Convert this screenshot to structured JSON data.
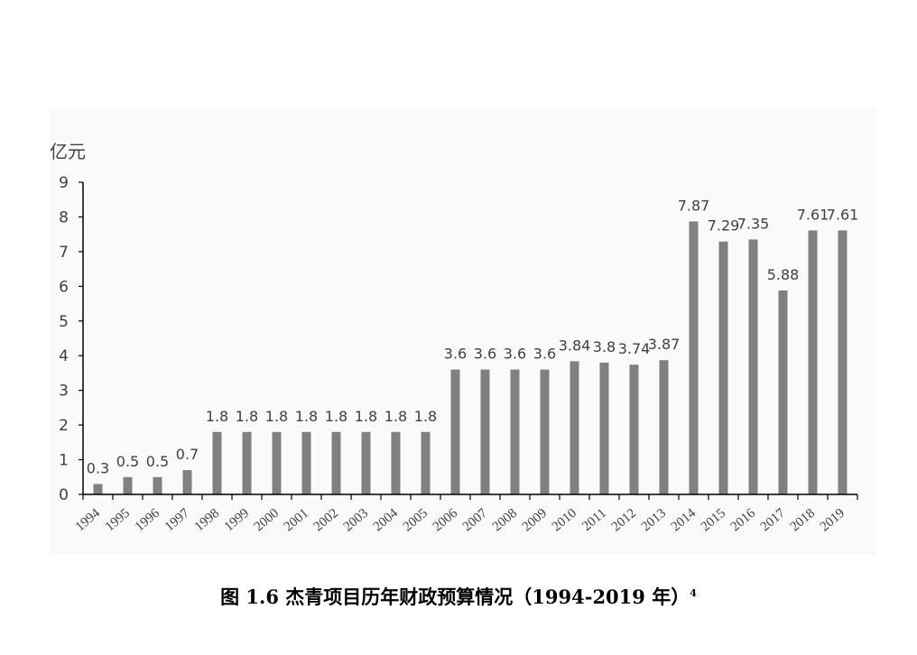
{
  "chart_data": {
    "type": "bar",
    "unit_label": "亿元",
    "categories": [
      "1994",
      "1995",
      "1996",
      "1997",
      "1998",
      "1999",
      "2000",
      "2001",
      "2002",
      "2003",
      "2004",
      "2005",
      "2006",
      "2007",
      "2008",
      "2009",
      "2010",
      "2011",
      "2012",
      "2013",
      "2014",
      "2015",
      "2016",
      "2017",
      "2018",
      "2019"
    ],
    "values": [
      0.3,
      0.5,
      0.5,
      0.7,
      1.8,
      1.8,
      1.8,
      1.8,
      1.8,
      1.8,
      1.8,
      1.8,
      3.6,
      3.6,
      3.6,
      3.6,
      3.84,
      3.8,
      3.74,
      3.87,
      7.87,
      7.29,
      7.35,
      5.88,
      7.61,
      7.61
    ],
    "data_labels": [
      "0.3",
      "0.5",
      "0.5",
      "0.7",
      "1.8",
      "1.8",
      "1.8",
      "1.8",
      "1.8",
      "1.8",
      "1.8",
      "1.8",
      "3.6",
      "3.6",
      "3.6",
      "3.6",
      "3.84",
      "3.8",
      "3.74",
      "3.87",
      "7.87",
      "7.29",
      "7.35",
      "5.88",
      "7.61",
      "7.61"
    ],
    "yticks": [
      "0",
      "1",
      "2",
      "3",
      "4",
      "5",
      "6",
      "7",
      "8",
      "9"
    ],
    "ylim": [
      0,
      9
    ],
    "bar_color": "#808080",
    "title": "",
    "xlabel": "",
    "ylabel": "亿元"
  },
  "caption": {
    "text": "图 1.6  杰青项目历年财政预算情况（1994-2019 年）",
    "footnote": "4"
  }
}
